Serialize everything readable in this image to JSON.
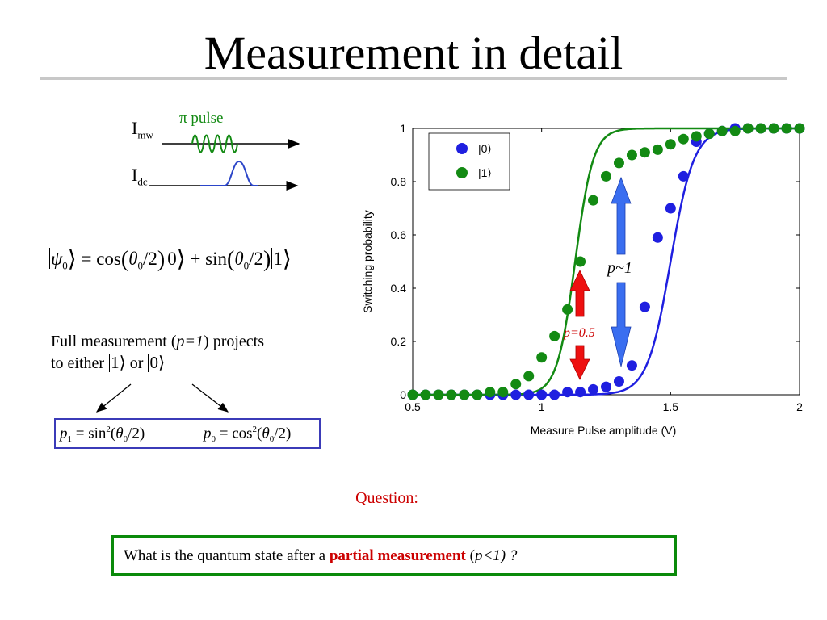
{
  "slide": {
    "title": "Measurement in detail",
    "pulse_label": "π pulse",
    "i_mw": "I",
    "i_mw_sub": "mw",
    "i_dc": "I",
    "i_dc_sub": "dc",
    "full_measurement_line1_pre": "Full measurement (",
    "full_measurement_p": "p=1",
    "full_measurement_line1_post": ") projects",
    "full_measurement_line2": "to either",
    "or_text": "or",
    "question": "Question:",
    "question_pre": "What is the quantum state after a ",
    "question_highlight": "partial measurement",
    "question_post_open": " (",
    "question_post_p": "p<1) ?"
  },
  "colors": {
    "state0": "#1f1fe0",
    "state1": "#138a13",
    "arrow_red": "#ee1010",
    "arrow_blue": "#3a6ef0",
    "box_blue": "#3b3bb8",
    "box_green": "#0a8a0a",
    "accent_red": "#cc0000"
  },
  "chart_data": {
    "type": "scatter",
    "xlabel": "Measure Pulse amplitude (V)",
    "ylabel": "Switching probability",
    "xlim": [
      0.5,
      2.0
    ],
    "ylim": [
      0,
      1
    ],
    "x_ticks": [
      "0.5",
      "1",
      "1.5",
      "2"
    ],
    "y_ticks": [
      "0",
      "0.2",
      "0.4",
      "0.6",
      "0.8",
      "1"
    ],
    "legend": [
      "|0⟩",
      "|1⟩"
    ],
    "legend_position": "top-left",
    "annotations": [
      "p=0.5",
      "p~1"
    ],
    "series": [
      {
        "name": "|0⟩",
        "color": "#1f1fe0",
        "fit_center": 1.5,
        "fit_width": 0.045,
        "x": [
          0.5,
          0.55,
          0.6,
          0.65,
          0.7,
          0.75,
          0.8,
          0.85,
          0.9,
          0.95,
          1.0,
          1.05,
          1.1,
          1.15,
          1.2,
          1.25,
          1.3,
          1.35,
          1.4,
          1.45,
          1.5,
          1.55,
          1.6,
          1.65,
          1.7,
          1.75,
          1.8,
          1.85,
          1.9,
          1.95,
          2.0
        ],
        "y": [
          0.0,
          0.0,
          0.0,
          0.0,
          0.0,
          0.0,
          0.0,
          0.0,
          0.0,
          0.0,
          0.0,
          0.0,
          0.01,
          0.01,
          0.02,
          0.03,
          0.05,
          0.11,
          0.33,
          0.59,
          0.7,
          0.82,
          0.95,
          0.98,
          0.99,
          1.0,
          1.0,
          1.0,
          1.0,
          1.0,
          1.0
        ]
      },
      {
        "name": "|1⟩",
        "color": "#138a13",
        "fit_center": 1.13,
        "fit_width": 0.035,
        "x": [
          0.5,
          0.55,
          0.6,
          0.65,
          0.7,
          0.75,
          0.8,
          0.85,
          0.9,
          0.95,
          1.0,
          1.05,
          1.1,
          1.15,
          1.2,
          1.25,
          1.3,
          1.35,
          1.4,
          1.45,
          1.5,
          1.55,
          1.6,
          1.65,
          1.7,
          1.75,
          1.8,
          1.85,
          1.9,
          1.95,
          2.0
        ],
        "y": [
          0.0,
          0.0,
          0.0,
          0.0,
          0.0,
          0.0,
          0.01,
          0.01,
          0.04,
          0.07,
          0.14,
          0.22,
          0.32,
          0.5,
          0.73,
          0.82,
          0.87,
          0.9,
          0.91,
          0.92,
          0.94,
          0.96,
          0.97,
          0.98,
          0.99,
          0.99,
          1.0,
          1.0,
          1.0,
          1.0,
          1.0
        ]
      }
    ]
  }
}
